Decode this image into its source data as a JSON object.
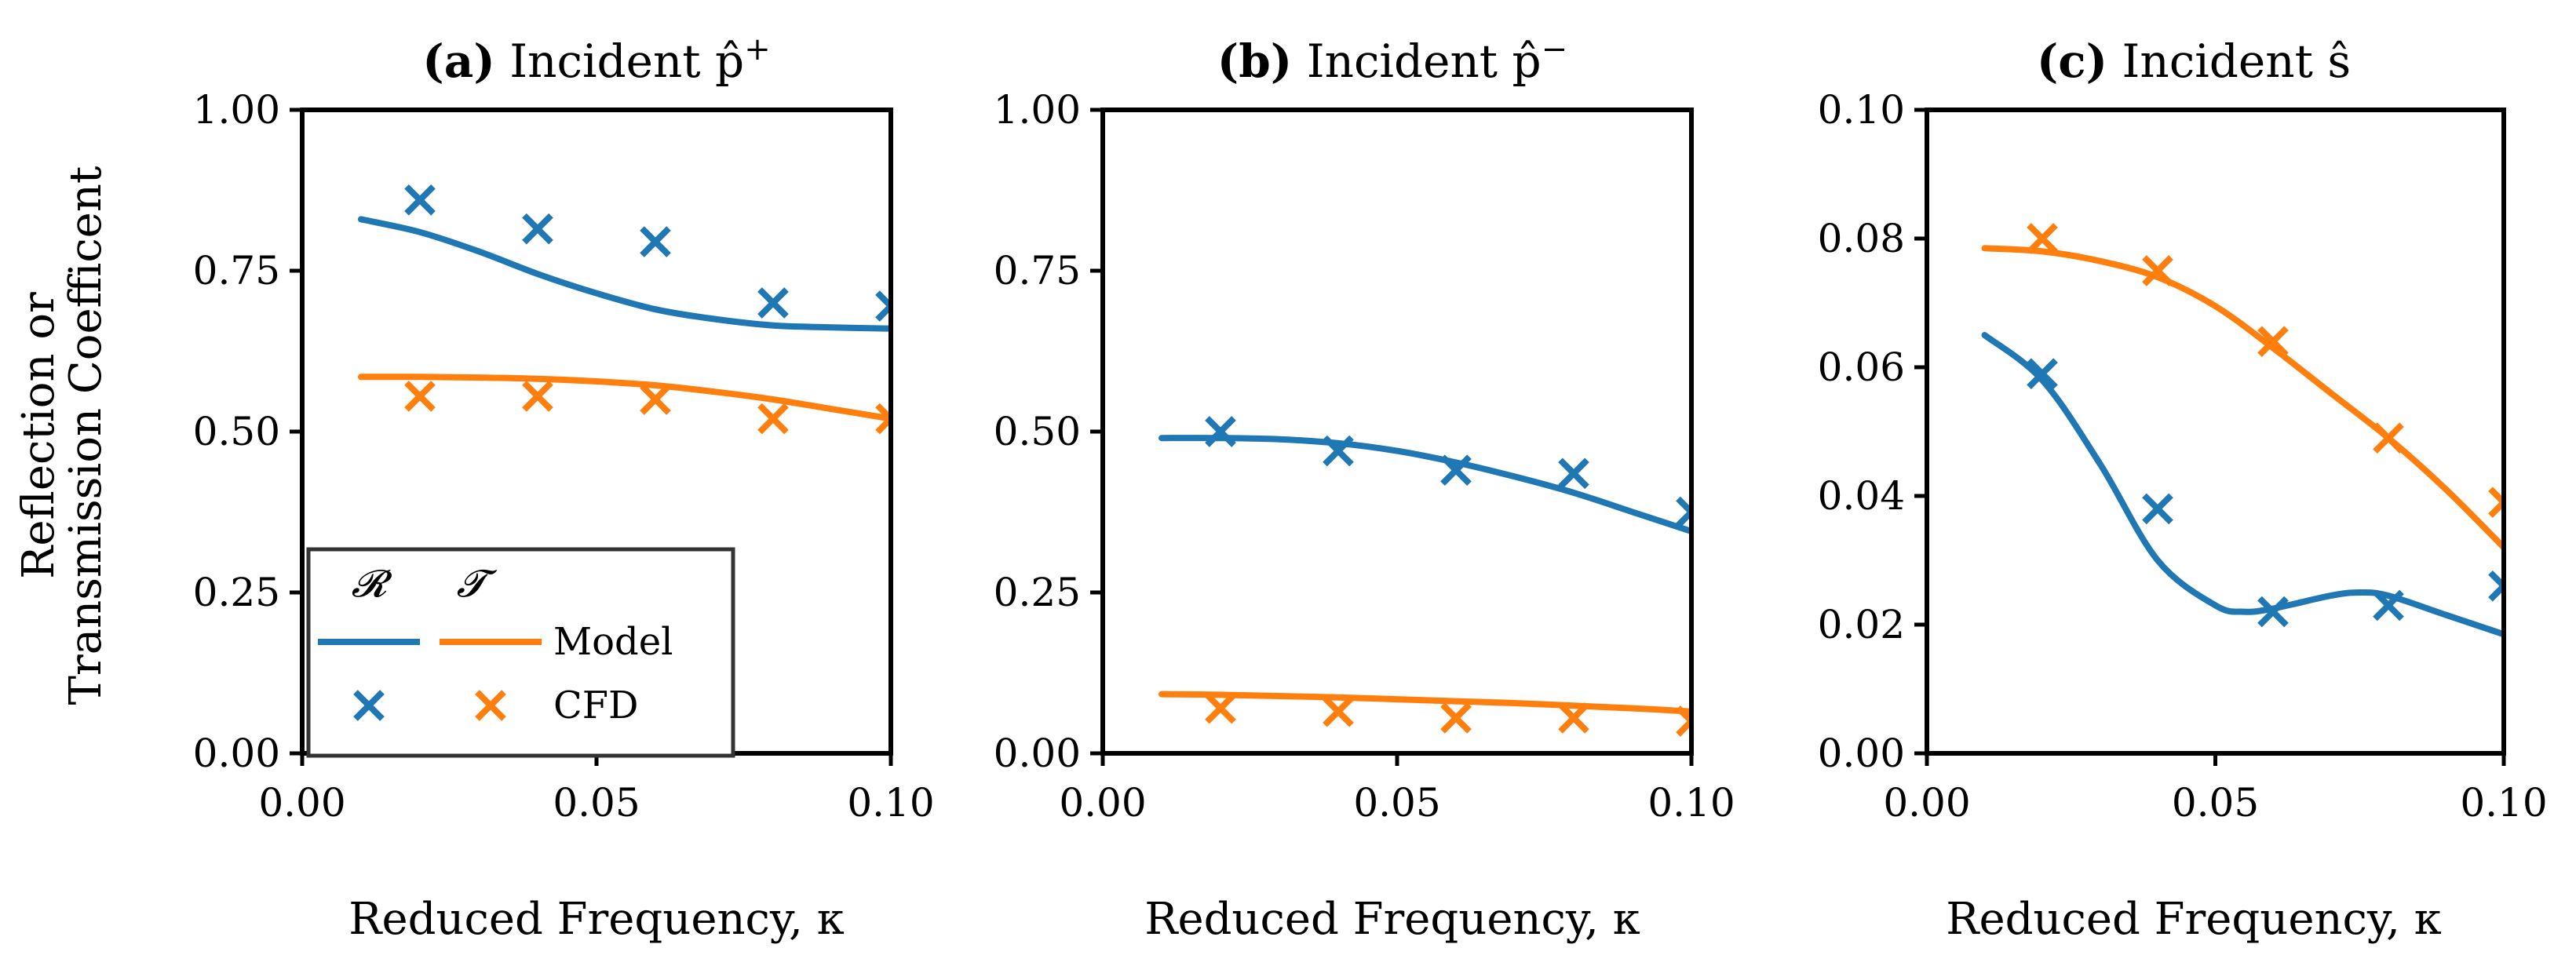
{
  "colors": {
    "reflection": "#1f77b4",
    "transmission": "#ff7f0e",
    "axis": "#000000"
  },
  "figure": {
    "ylabel_line1": "Reflection or",
    "ylabel_line2": "Transmission Coefficent"
  },
  "legend": {
    "col_r": "𝓡",
    "col_t": "𝓣",
    "model_label": "Model",
    "cfd_label": "CFD",
    "placement": "lower-left of panel (a)"
  },
  "chart_data": [
    {
      "type": "line",
      "title_bold": "(a)",
      "title_text": "Incident p̂",
      "title_sup": "+",
      "xlabel": "Reduced Frequency, κ",
      "xlim": [
        0,
        0.1
      ],
      "ylim": [
        0,
        1.0
      ],
      "xticks": [
        "0.00",
        "0.05",
        "0.10"
      ],
      "yticks": [
        "0.00",
        "0.25",
        "0.50",
        "0.75",
        "1.00"
      ],
      "series": [
        {
          "name": "Model",
          "quantity": "R",
          "kind": "line",
          "x": [
            0.01,
            0.02,
            0.03,
            0.04,
            0.05,
            0.06,
            0.07,
            0.08,
            0.09,
            0.1
          ],
          "y": [
            0.83,
            0.81,
            0.78,
            0.745,
            0.715,
            0.69,
            0.675,
            0.665,
            0.662,
            0.66
          ]
        },
        {
          "name": "Model",
          "quantity": "T",
          "kind": "line",
          "x": [
            0.01,
            0.02,
            0.03,
            0.04,
            0.05,
            0.06,
            0.07,
            0.08,
            0.09,
            0.1
          ],
          "y": [
            0.585,
            0.585,
            0.584,
            0.582,
            0.578,
            0.572,
            0.562,
            0.55,
            0.535,
            0.52
          ]
        },
        {
          "name": "CFD",
          "quantity": "R",
          "kind": "marker",
          "x": [
            0.02,
            0.04,
            0.06,
            0.08,
            0.1
          ],
          "y": [
            0.86,
            0.815,
            0.795,
            0.7,
            0.695
          ]
        },
        {
          "name": "CFD",
          "quantity": "T",
          "kind": "marker",
          "x": [
            0.02,
            0.04,
            0.06,
            0.08,
            0.1
          ],
          "y": [
            0.555,
            0.555,
            0.55,
            0.52,
            0.52
          ]
        }
      ]
    },
    {
      "type": "line",
      "title_bold": "(b)",
      "title_text": "Incident p̂",
      "title_sup": "−",
      "xlabel": "Reduced Frequency, κ",
      "xlim": [
        0,
        0.1
      ],
      "ylim": [
        0,
        1.0
      ],
      "xticks": [
        "0.00",
        "0.05",
        "0.10"
      ],
      "yticks": [
        "0.00",
        "0.25",
        "0.50",
        "0.75",
        "1.00"
      ],
      "series": [
        {
          "name": "Model",
          "quantity": "R",
          "kind": "line",
          "x": [
            0.01,
            0.02,
            0.03,
            0.04,
            0.05,
            0.06,
            0.07,
            0.08,
            0.09,
            0.1
          ],
          "y": [
            0.49,
            0.49,
            0.488,
            0.482,
            0.47,
            0.452,
            0.43,
            0.405,
            0.375,
            0.345
          ]
        },
        {
          "name": "Model",
          "quantity": "T",
          "kind": "line",
          "x": [
            0.01,
            0.02,
            0.03,
            0.04,
            0.05,
            0.06,
            0.07,
            0.08,
            0.09,
            0.1
          ],
          "y": [
            0.092,
            0.091,
            0.089,
            0.087,
            0.084,
            0.081,
            0.078,
            0.074,
            0.07,
            0.065
          ]
        },
        {
          "name": "CFD",
          "quantity": "R",
          "kind": "marker",
          "x": [
            0.02,
            0.04,
            0.06,
            0.08,
            0.1
          ],
          "y": [
            0.5,
            0.47,
            0.44,
            0.435,
            0.375
          ]
        },
        {
          "name": "CFD",
          "quantity": "T",
          "kind": "marker",
          "x": [
            0.02,
            0.04,
            0.06,
            0.08,
            0.1
          ],
          "y": [
            0.07,
            0.065,
            0.055,
            0.055,
            0.05
          ]
        }
      ]
    },
    {
      "type": "line",
      "title_bold": "(c)",
      "title_text": "Incident ŝ",
      "title_sup": "",
      "xlabel": "Reduced Frequency, κ",
      "xlim": [
        0,
        0.1
      ],
      "ylim": [
        0,
        0.1
      ],
      "xticks": [
        "0.00",
        "0.05",
        "0.10"
      ],
      "yticks": [
        "0.00",
        "0.02",
        "0.04",
        "0.06",
        "0.08",
        "0.10"
      ],
      "series": [
        {
          "name": "Model",
          "quantity": "R",
          "kind": "line",
          "x": [
            0.01,
            0.02,
            0.03,
            0.04,
            0.05,
            0.055,
            0.06,
            0.07,
            0.075,
            0.08,
            0.09,
            0.1
          ],
          "y": [
            0.065,
            0.058,
            0.045,
            0.03,
            0.023,
            0.022,
            0.0225,
            0.0245,
            0.025,
            0.0245,
            0.0215,
            0.0185
          ]
        },
        {
          "name": "Model",
          "quantity": "T",
          "kind": "line",
          "x": [
            0.01,
            0.02,
            0.03,
            0.04,
            0.05,
            0.06,
            0.07,
            0.08,
            0.09,
            0.1
          ],
          "y": [
            0.0785,
            0.078,
            0.0765,
            0.074,
            0.0695,
            0.063,
            0.056,
            0.049,
            0.041,
            0.032
          ]
        },
        {
          "name": "CFD",
          "quantity": "R",
          "kind": "marker",
          "x": [
            0.02,
            0.04,
            0.06,
            0.08,
            0.1
          ],
          "y": [
            0.059,
            0.038,
            0.022,
            0.023,
            0.026
          ]
        },
        {
          "name": "CFD",
          "quantity": "T",
          "kind": "marker",
          "x": [
            0.02,
            0.04,
            0.06,
            0.08,
            0.1
          ],
          "y": [
            0.08,
            0.075,
            0.064,
            0.049,
            0.039
          ]
        }
      ]
    }
  ]
}
